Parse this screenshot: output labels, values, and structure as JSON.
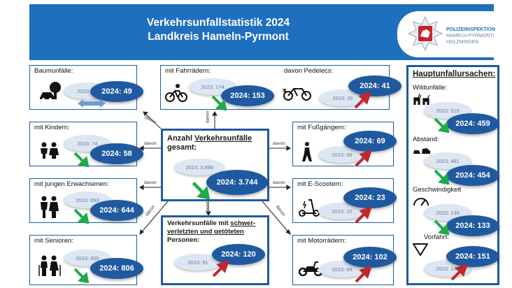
{
  "header": {
    "title_line1": "Verkehrsunfallstatistik 2024",
    "title_line2": "Landkreis Hameln-Pyrmont",
    "logo_line1": "POLIZEIINSPEKTION",
    "logo_line2": "HAMELN-PYRMONT/",
    "logo_line3": "HOLZMINDEN"
  },
  "center": {
    "title_pre": "Anzahl ",
    "title_underlined": "Verkehrsunfälle",
    "title_post": "gesamt:",
    "old": "2023: 3.886",
    "new": "2024: 3.744"
  },
  "severe": {
    "title_pre": "Verkehrsunfälle mit ",
    "title_underlined_1": "schwer-",
    "title_underlined_2": "verletzten und getöteten",
    "title_post": "Personen:",
    "old": "2023: 91",
    "new": "2024: 120"
  },
  "left_boxes": [
    {
      "label": "Baumunfälle:",
      "old": "2023: 49",
      "new": "2024: 49",
      "trend": "equal",
      "icon": "tree-crash-icon"
    },
    {
      "label": "mit Kindern:",
      "old": "2023: 74",
      "new": "2024: 58",
      "trend": "down",
      "icon": "children-icon"
    },
    {
      "label": "mit jungen Erwachsenen:",
      "old": "2023: 693",
      "new": "2024: 644",
      "trend": "down",
      "icon": "young-adults-icon"
    },
    {
      "label": "mit Senioren:",
      "old": "2023: 855",
      "new": "2024: 806",
      "trend": "down",
      "icon": "seniors-icon"
    }
  ],
  "top_box": {
    "label1": "mit Fahrrädern:",
    "old1": "2023: 174",
    "new1": "2024: 153",
    "label2": "davon Pedelecs:",
    "old2": "2023: 39",
    "new2": "2024: 41"
  },
  "right_boxes": [
    {
      "label": "mit Fußgängern:",
      "old": "2023: 68",
      "new": "2024: 69",
      "trend": "up",
      "icon": "pedestrian-icon"
    },
    {
      "label": "mit E-Scootern:",
      "old": "2023: 20",
      "new": "2024: 23",
      "trend": "up",
      "icon": "escooter-icon"
    },
    {
      "label": "mit Motorrädern:",
      "old": "2023: 89",
      "new": "2024: 102",
      "trend": "up",
      "icon": "motorcycle-icon"
    }
  ],
  "causes": {
    "title": "Hauptunfallursachen:",
    "items": [
      {
        "label": "Wildunfälle:",
        "old": "2023: 519",
        "new": "2024: 459",
        "trend": "down",
        "icon": "deer-icon"
      },
      {
        "label": "Abstand:",
        "old": "2023: 481",
        "new": "2024: 454",
        "trend": "down",
        "icon": "rear-end-icon"
      },
      {
        "label": "Geschwindigkeit",
        "old": "2023: 139",
        "new": "2024: 133",
        "trend": "down",
        "icon": "speedometer-icon"
      },
      {
        "label": "Vorfahrt:",
        "old": "2023: 140",
        "new": "2024: 151",
        "trend": "up",
        "icon": "yield-sign-icon"
      }
    ]
  },
  "connector_label": "davon",
  "colors": {
    "primary": "#1f5aa0",
    "header": "#1f6fbf",
    "down": "#1faa4a",
    "up": "#c0282e",
    "equal": "#6b9bd2"
  }
}
